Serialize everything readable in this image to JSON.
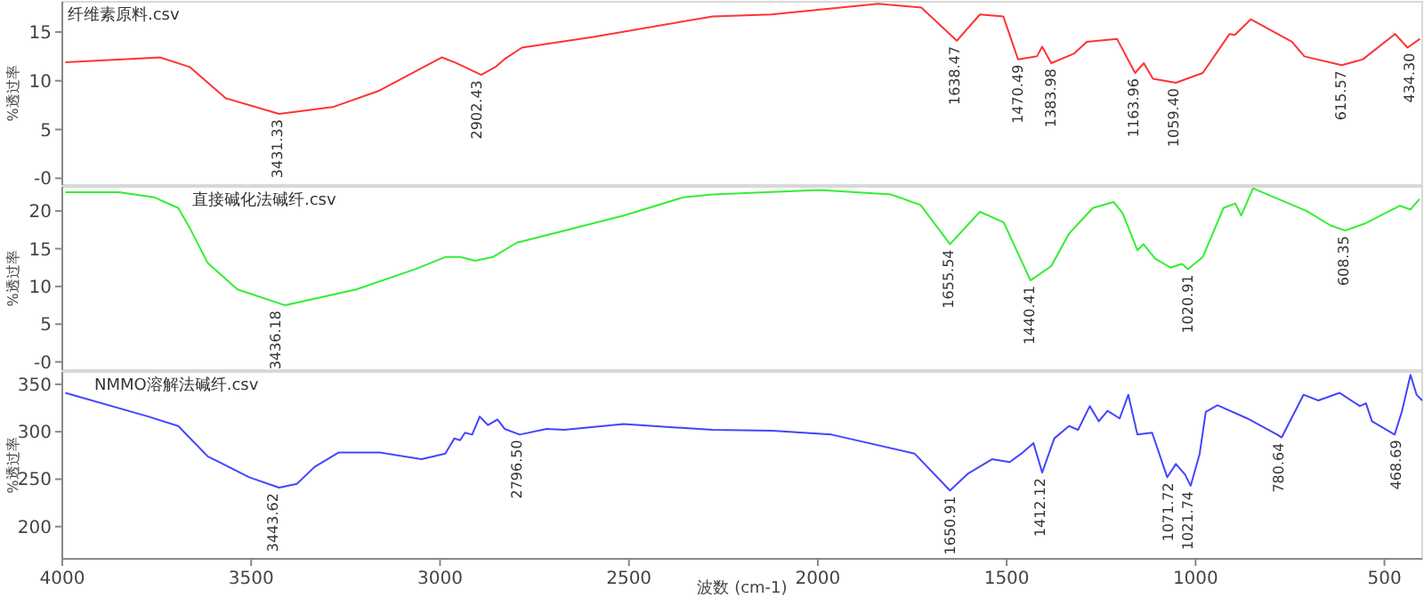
{
  "chart_data": [
    {
      "type": "line",
      "title": "纤维素原料.csv",
      "ylabel": "%透过率",
      "xlim": [
        4000,
        400
      ],
      "ylim": [
        -0.7,
        18.1
      ],
      "yticks": [
        {
          "value": 0,
          "label": "-0"
        },
        5,
        10,
        15
      ],
      "tick_labels": "y",
      "color": "#ff3333",
      "x": [
        3992,
        3741,
        3662,
        3567,
        3426,
        3284,
        3160,
        2995,
        2962,
        2891,
        2854,
        2830,
        2783,
        2594,
        2278,
        2123,
        1840,
        1726,
        1632,
        1571,
        1509,
        1470,
        1420,
        1406,
        1382,
        1321,
        1288,
        1208,
        1160,
        1137,
        1113,
        1052,
        981,
        910,
        896,
        854,
        745,
        712,
        613,
        557,
        472,
        439,
        406
      ],
      "values": [
        11.9,
        12.4,
        11.4,
        8.2,
        6.6,
        7.3,
        9.0,
        12.4,
        11.9,
        10.6,
        11.4,
        12.2,
        13.4,
        14.5,
        16.6,
        16.8,
        17.9,
        17.5,
        14.1,
        16.8,
        16.6,
        12.2,
        12.5,
        13.5,
        11.8,
        12.8,
        14.0,
        14.3,
        10.8,
        11.8,
        10.2,
        9.8,
        10.8,
        14.8,
        14.7,
        16.3,
        14.0,
        12.5,
        11.6,
        12.2,
        14.8,
        13.4,
        14.3
      ],
      "annotations": [
        {
          "text": "3431.33",
          "x": 3431.33,
          "y": 6.6
        },
        {
          "text": "2902.43",
          "x": 2902.43,
          "y": 10.6
        },
        {
          "text": "1638.47",
          "x": 1638.47,
          "y": 14.1
        },
        {
          "text": "1470.49",
          "x": 1470.49,
          "y": 12.2
        },
        {
          "text": "1383.98",
          "x": 1383.98,
          "y": 11.8
        },
        {
          "text": "1163.96",
          "x": 1163.96,
          "y": 10.8
        },
        {
          "text": "1059.40",
          "x": 1059.4,
          "y": 9.8
        },
        {
          "text": "615.57",
          "x": 615.57,
          "y": 11.6
        },
        {
          "text": "434.30",
          "x": 434.3,
          "y": 13.4
        }
      ]
    },
    {
      "type": "line",
      "title": "直接碱化法碱纤.csv",
      "ylabel": "%透过率",
      "xlim": [
        4000,
        400
      ],
      "ylim": [
        -1.1,
        23.2
      ],
      "yticks": [
        {
          "value": 0,
          "label": "-0"
        },
        5,
        10,
        15,
        20
      ],
      "tick_labels": "y",
      "color": "#33ee33",
      "x": [
        3992,
        3850,
        3756,
        3693,
        3662,
        3615,
        3536,
        3410,
        3222,
        3065,
        2986,
        2947,
        2907,
        2860,
        2797,
        2671,
        2514,
        2357,
        2278,
        1995,
        1807,
        1728,
        1650,
        1571,
        1508,
        1437,
        1382,
        1335,
        1272,
        1217,
        1193,
        1154,
        1138,
        1107,
        1067,
        1036,
        1020,
        981,
        926,
        895,
        879,
        848,
        706,
        643,
        604,
        549,
        459,
        431,
        407
      ],
      "values": [
        22.5,
        22.5,
        21.8,
        20.4,
        17.7,
        13.1,
        9.6,
        7.5,
        9.6,
        12.3,
        13.9,
        13.9,
        13.4,
        13.9,
        15.8,
        17.4,
        19.4,
        21.8,
        22.2,
        22.8,
        22.2,
        20.8,
        15.6,
        19.9,
        18.5,
        10.8,
        12.7,
        17.0,
        20.4,
        21.2,
        19.7,
        14.8,
        15.6,
        13.7,
        12.5,
        13.0,
        12.3,
        13.9,
        20.4,
        21.0,
        19.4,
        23.0,
        20.0,
        18.1,
        17.4,
        18.4,
        20.7,
        20.2,
        21.6
      ],
      "annotations": [
        {
          "text": "3436.18",
          "x": 3436.18,
          "y": 7.5
        },
        {
          "text": "1655.54",
          "x": 1655.54,
          "y": 15.6
        },
        {
          "text": "1440.41",
          "x": 1440.41,
          "y": 10.8
        },
        {
          "text": "1020.91",
          "x": 1020.91,
          "y": 12.3
        },
        {
          "text": "608.35",
          "x": 608.35,
          "y": 17.4
        }
      ]
    },
    {
      "type": "line",
      "title": "NMMO溶解法碱纤.csv",
      "ylabel": "%透过率",
      "xlabel": "波数 (cm-1)",
      "xlim": [
        4000,
        400
      ],
      "ylim": [
        166,
        363
      ],
      "xticks": [
        4000,
        3500,
        3000,
        2500,
        2000,
        1500,
        1000,
        500
      ],
      "yticks": [
        200,
        250,
        300,
        350
      ],
      "color": "#4444ff",
      "x": [
        3992,
        3772,
        3693,
        3615,
        3505,
        3426,
        3379,
        3332,
        3269,
        3159,
        3049,
        2986,
        2962,
        2947,
        2934,
        2915,
        2895,
        2873,
        2848,
        2829,
        2789,
        2718,
        2671,
        2514,
        2278,
        2121,
        1964,
        1744,
        1650,
        1602,
        1539,
        1492,
        1461,
        1429,
        1406,
        1374,
        1335,
        1311,
        1280,
        1256,
        1233,
        1201,
        1178,
        1154,
        1115,
        1075,
        1052,
        1028,
        1013,
        989,
        973,
        942,
        863,
        784,
        772,
        714,
        675,
        619,
        565,
        549,
        533,
        473,
        454,
        431,
        415,
        400
      ],
      "values": [
        341,
        316,
        306,
        274,
        252,
        241,
        245,
        263,
        278,
        278,
        271,
        277,
        293,
        291,
        299,
        297,
        316,
        307,
        313,
        303,
        297,
        303,
        302,
        308,
        302,
        301,
        297,
        277,
        238,
        256,
        271,
        268,
        277,
        288,
        257,
        293,
        306,
        302,
        327,
        311,
        322,
        314,
        339,
        297,
        299,
        252,
        266,
        255,
        243,
        277,
        321,
        328,
        314,
        297,
        294,
        339,
        333,
        341,
        327,
        330,
        311,
        297,
        321,
        360,
        339,
        333
      ],
      "annotations": [
        {
          "text": "3443.62",
          "x": 3443.62,
          "y": 241
        },
        {
          "text": "2796.50",
          "x": 2796.5,
          "y": 297
        },
        {
          "text": "1650.91",
          "x": 1650.91,
          "y": 238
        },
        {
          "text": "1412.12",
          "x": 1412.12,
          "y": 257
        },
        {
          "text": "1071.72",
          "x": 1071.72,
          "y": 252
        },
        {
          "text": "1021.74",
          "x": 1021.74,
          "y": 243
        },
        {
          "text": "780.64",
          "x": 780.64,
          "y": 294
        },
        {
          "text": "468.69",
          "x": 468.69,
          "y": 297
        }
      ]
    }
  ]
}
